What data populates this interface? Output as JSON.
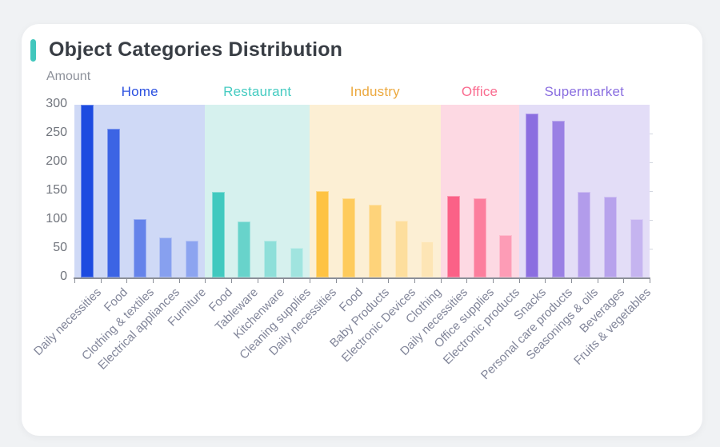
{
  "page": {
    "background": "#f0f2f4",
    "card_background": "#ffffff"
  },
  "header": {
    "title": "Object Categories Distribution",
    "accent_color": "#41c7bd",
    "title_color": "#383d44"
  },
  "chart_data": {
    "type": "bar",
    "title": "Object Categories Distribution",
    "ylabel": "Amount",
    "xlabel": "",
    "ylim": [
      0,
      300
    ],
    "yticks": [
      0,
      50,
      100,
      150,
      200,
      250,
      300
    ],
    "grid": false,
    "legend_position": "group-labels-above-bands",
    "axis": {
      "line_color": "#8b8f98",
      "xtick_label_color": "#82869a",
      "ytick_label_color": "#70747c",
      "ylabel_color": "#8d919a"
    },
    "groups": [
      {
        "name": "Home",
        "label_color": "#2b50e0",
        "band_color": "#cfd9f6",
        "bars": [
          {
            "label": "Daily necessities",
            "value": 300,
            "color": "#1d4be0"
          },
          {
            "label": "Food",
            "value": 258,
            "color": "#3c64e4"
          },
          {
            "label": "Clothing & textiles",
            "value": 102,
            "color": "#6583ea"
          },
          {
            "label": "Electrical appliances",
            "value": 69,
            "color": "#87a0ef"
          },
          {
            "label": "Furniture",
            "value": 64,
            "color": "#8ca4f0"
          }
        ]
      },
      {
        "name": "Restaurant",
        "label_color": "#45cbc1",
        "band_color": "#d6f1ee",
        "bars": [
          {
            "label": "Food",
            "value": 148,
            "color": "#41c9bf"
          },
          {
            "label": "Tableware",
            "value": 97,
            "color": "#68d3cb"
          },
          {
            "label": "Kitchenware",
            "value": 64,
            "color": "#8edfd9"
          },
          {
            "label": "Cleaning supplies",
            "value": 51,
            "color": "#a0e4df"
          }
        ]
      },
      {
        "name": "Industry",
        "label_color": "#eca93f",
        "band_color": "#fcefd4",
        "bars": [
          {
            "label": "Daily necessities",
            "value": 150,
            "color": "#fec343"
          },
          {
            "label": "Food",
            "value": 138,
            "color": "#fecb5c"
          },
          {
            "label": "Baby Products",
            "value": 126,
            "color": "#fed37a"
          },
          {
            "label": "Electronic Devices",
            "value": 98,
            "color": "#fdde9d"
          },
          {
            "label": "Clothing",
            "value": 63,
            "color": "#fde5b5"
          }
        ]
      },
      {
        "name": "Office",
        "label_color": "#fa6b8f",
        "band_color": "#fdd9e3",
        "bars": [
          {
            "label": "Daily necessities",
            "value": 141,
            "color": "#fb6187"
          },
          {
            "label": "Office supplies",
            "value": 138,
            "color": "#fc7e9d"
          },
          {
            "label": "Electronic products",
            "value": 74,
            "color": "#fd9cb6"
          }
        ]
      },
      {
        "name": "Supermarket",
        "label_color": "#8a6ee0",
        "band_color": "#e3ddf7",
        "bars": [
          {
            "label": "Snacks",
            "value": 285,
            "color": "#8b6ee0"
          },
          {
            "label": "Personal care products",
            "value": 272,
            "color": "#9a80e4"
          },
          {
            "label": "Seasonings & oils",
            "value": 148,
            "color": "#b29ceb"
          },
          {
            "label": "Beverages",
            "value": 140,
            "color": "#b7a2ec"
          },
          {
            "label": "Fruits & vegetables",
            "value": 101,
            "color": "#c5b4f0"
          }
        ]
      }
    ]
  }
}
